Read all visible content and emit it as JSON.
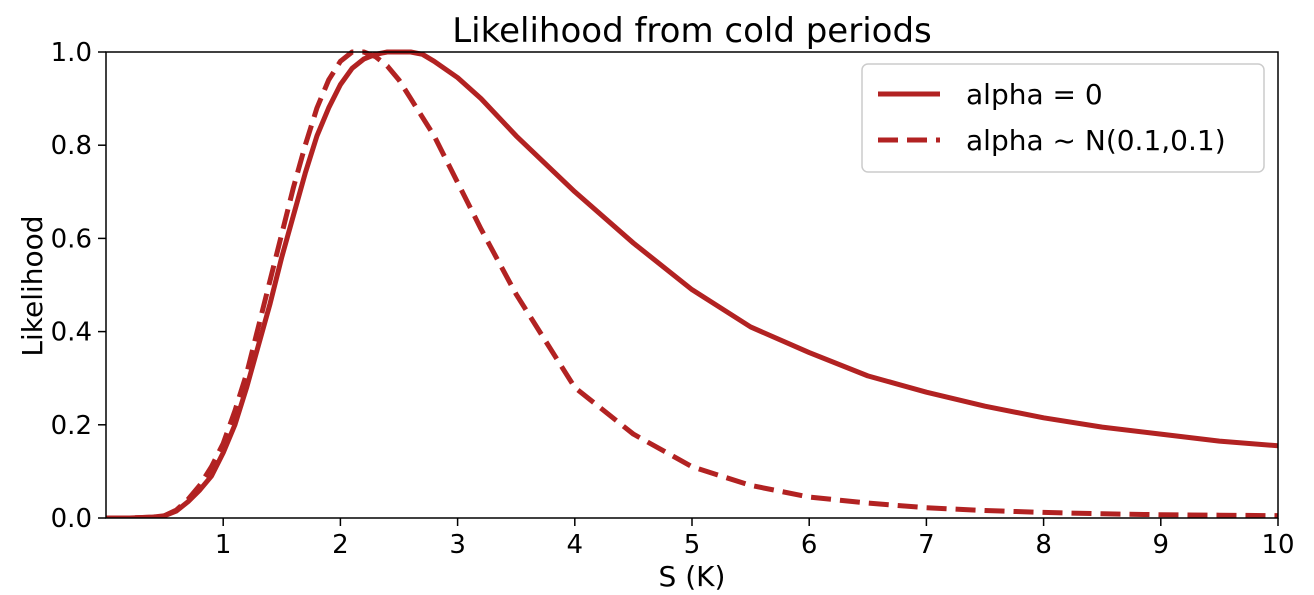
{
  "chart_data": {
    "type": "line",
    "title": "Likelihood from cold periods",
    "xlabel": "S (K)",
    "ylabel": "Likelihood",
    "xlim": [
      0,
      10
    ],
    "ylim": [
      0,
      1
    ],
    "xticks": [
      1,
      2,
      3,
      4,
      5,
      6,
      7,
      8,
      9,
      10
    ],
    "yticks": [
      0.0,
      0.2,
      0.4,
      0.6,
      0.8,
      1.0
    ],
    "xtick_labels": [
      "1",
      "2",
      "3",
      "4",
      "5",
      "6",
      "7",
      "8",
      "9",
      "10"
    ],
    "ytick_labels": [
      "0.0",
      "0.2",
      "0.4",
      "0.6",
      "0.8",
      "1.0"
    ],
    "grid": false,
    "legend_position": "top-right",
    "series": [
      {
        "name": "alpha = 0",
        "style": "solid",
        "color": "#b22222",
        "x": [
          0,
          0.2,
          0.4,
          0.5,
          0.6,
          0.7,
          0.8,
          0.9,
          1.0,
          1.1,
          1.2,
          1.3,
          1.4,
          1.5,
          1.6,
          1.7,
          1.8,
          1.9,
          2.0,
          2.1,
          2.2,
          2.3,
          2.4,
          2.5,
          2.6,
          2.7,
          2.8,
          3.0,
          3.2,
          3.5,
          4.0,
          4.5,
          5.0,
          5.5,
          6.0,
          6.5,
          7.0,
          7.5,
          8.0,
          8.5,
          9.0,
          9.5,
          10.0
        ],
        "y": [
          0.0,
          0.0,
          0.002,
          0.005,
          0.015,
          0.035,
          0.06,
          0.09,
          0.14,
          0.2,
          0.28,
          0.37,
          0.46,
          0.56,
          0.65,
          0.74,
          0.82,
          0.88,
          0.93,
          0.965,
          0.985,
          0.995,
          1.0,
          1.0,
          1.0,
          0.995,
          0.98,
          0.945,
          0.9,
          0.82,
          0.7,
          0.59,
          0.49,
          0.41,
          0.355,
          0.305,
          0.27,
          0.24,
          0.215,
          0.195,
          0.18,
          0.165,
          0.155
        ]
      },
      {
        "name": "alpha ~ N(0.1,0.1)",
        "style": "dashed",
        "color": "#b22222",
        "x": [
          0,
          0.2,
          0.4,
          0.5,
          0.6,
          0.7,
          0.8,
          0.9,
          1.0,
          1.1,
          1.2,
          1.3,
          1.4,
          1.5,
          1.6,
          1.7,
          1.8,
          1.9,
          2.0,
          2.1,
          2.2,
          2.3,
          2.4,
          2.5,
          2.6,
          2.8,
          3.0,
          3.2,
          3.5,
          4.0,
          4.5,
          5.0,
          5.5,
          6.0,
          6.5,
          7.0,
          7.5,
          8.0,
          8.5,
          9.0,
          9.5,
          10.0
        ],
        "y": [
          0.0,
          0.0,
          0.002,
          0.005,
          0.017,
          0.04,
          0.07,
          0.11,
          0.16,
          0.23,
          0.31,
          0.41,
          0.51,
          0.61,
          0.71,
          0.8,
          0.88,
          0.94,
          0.98,
          1.0,
          1.0,
          0.99,
          0.97,
          0.94,
          0.9,
          0.82,
          0.72,
          0.62,
          0.48,
          0.28,
          0.18,
          0.11,
          0.07,
          0.045,
          0.032,
          0.022,
          0.016,
          0.012,
          0.009,
          0.007,
          0.006,
          0.005
        ]
      }
    ]
  }
}
